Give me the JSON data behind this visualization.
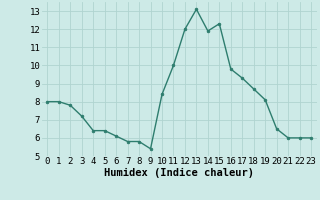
{
  "x": [
    0,
    1,
    2,
    3,
    4,
    5,
    6,
    7,
    8,
    9,
    10,
    11,
    12,
    13,
    14,
    15,
    16,
    17,
    18,
    19,
    20,
    21,
    22,
    23
  ],
  "y": [
    8,
    8,
    7.8,
    7.2,
    6.4,
    6.4,
    6.1,
    5.8,
    5.8,
    5.4,
    8.4,
    10,
    12,
    13.1,
    11.9,
    12.3,
    9.8,
    9.3,
    8.7,
    8.1,
    6.5,
    6,
    6,
    6
  ],
  "line_color": "#2e7d6e",
  "marker": "o",
  "marker_size": 2.0,
  "bg_color": "#cdeae7",
  "grid_color": "#b0d4d0",
  "xlabel": "Humidex (Indice chaleur)",
  "xlim": [
    -0.5,
    23.5
  ],
  "ylim": [
    5,
    13.5
  ],
  "yticks": [
    5,
    6,
    7,
    8,
    9,
    10,
    11,
    12,
    13
  ],
  "xticks": [
    0,
    1,
    2,
    3,
    4,
    5,
    6,
    7,
    8,
    9,
    10,
    11,
    12,
    13,
    14,
    15,
    16,
    17,
    18,
    19,
    20,
    21,
    22,
    23
  ],
  "xtick_labels": [
    "0",
    "1",
    "2",
    "3",
    "4",
    "5",
    "6",
    "7",
    "8",
    "9",
    "10",
    "11",
    "12",
    "13",
    "14",
    "15",
    "16",
    "17",
    "18",
    "19",
    "20",
    "21",
    "22",
    "23"
  ],
  "xlabel_fontsize": 7.5,
  "tick_fontsize": 6.5,
  "linewidth": 1.0
}
